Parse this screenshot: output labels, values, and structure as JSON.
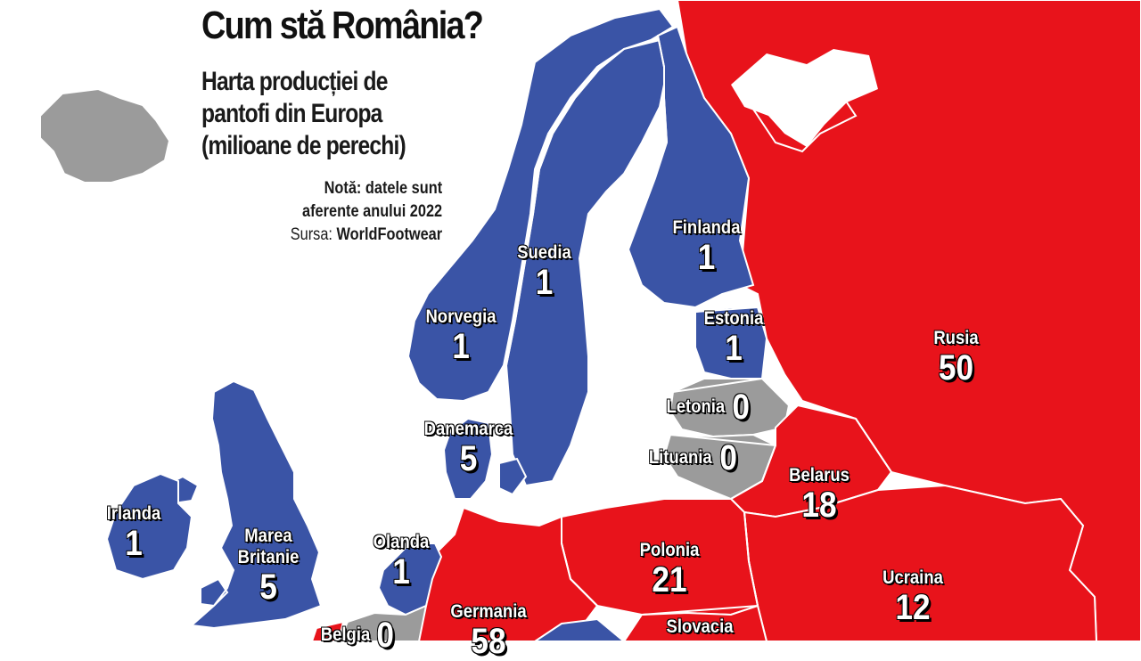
{
  "header": {
    "title": "Cum stă România?",
    "subtitle_lines": [
      "Harta producției de",
      "pantofi din Europa",
      "(milioane de perechi)"
    ],
    "note_line1": "Notă: datele sunt",
    "note_line2": "aferente anului 2022",
    "source_label": "Sursa: ",
    "source_name": "WorldFootwear"
  },
  "colors": {
    "high": "#e8131b",
    "low": "#3a54a6",
    "zero": "#9b9b9b",
    "border": "#ffffff"
  },
  "countries": [
    {
      "name": "Finlanda",
      "value": "1",
      "category": "low"
    },
    {
      "name": "Suedia",
      "value": "1",
      "category": "low"
    },
    {
      "name": "Norvegia",
      "value": "1",
      "category": "low"
    },
    {
      "name": "Estonia",
      "value": "1",
      "category": "low"
    },
    {
      "name": "Rusia",
      "value": "50",
      "category": "high"
    },
    {
      "name": "Letonia",
      "value": "0",
      "category": "zero"
    },
    {
      "name": "Lituania",
      "value": "0",
      "category": "zero"
    },
    {
      "name": "Danemarca",
      "value": "5",
      "category": "low"
    },
    {
      "name": "Belarus",
      "value": "18",
      "category": "high"
    },
    {
      "name": "Irlanda",
      "value": "1",
      "category": "low"
    },
    {
      "name": "Marea Britanie",
      "value": "5",
      "category": "low"
    },
    {
      "name": "Olanda",
      "value": "1",
      "category": "low"
    },
    {
      "name": "Polonia",
      "value": "21",
      "category": "high"
    },
    {
      "name": "Ucraina",
      "value": "12",
      "category": "high"
    },
    {
      "name": "Germania",
      "value": "58",
      "category": "high"
    },
    {
      "name": "Slovacia",
      "value": "",
      "category": "high"
    },
    {
      "name": "Belgia",
      "value": "0",
      "category": "zero"
    }
  ]
}
